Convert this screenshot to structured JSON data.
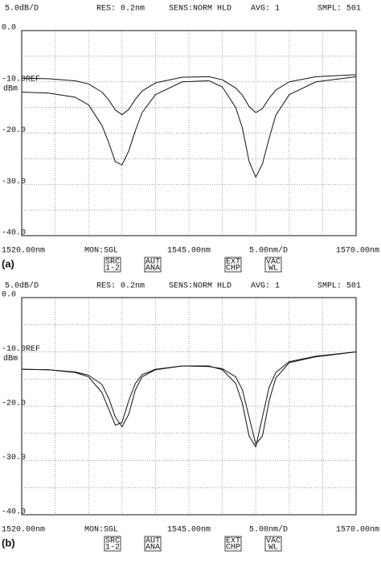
{
  "chart_data": [
    {
      "type": "line",
      "panel_label": "(a)",
      "header": [
        "5.0dB/D",
        "RES: 0.2nm",
        "SENS:NORM HLD",
        "AVG:   1",
        "SMPL: 501"
      ],
      "ref_label": "REF",
      "unit_label": "dBm",
      "mon_label": "MON:SGL",
      "scale_label": "5.00nm/D",
      "buttons": [
        [
          "SRC",
          "1-2"
        ],
        [
          "AUT",
          "ANA"
        ],
        [
          "EXT",
          "CHP"
        ],
        [
          "VAC",
          "WL"
        ]
      ],
      "x": [
        1520,
        1524,
        1528,
        1530,
        1532,
        1533,
        1534,
        1535,
        1536,
        1537,
        1538,
        1540,
        1544,
        1548,
        1550,
        1552,
        1553,
        1554,
        1555,
        1556,
        1557,
        1558,
        1560,
        1564,
        1570
      ],
      "series": [
        {
          "color": "#111111",
          "values": [
            -9.3,
            -9.4,
            -9.8,
            -10.4,
            -12.0,
            -13.5,
            -15.5,
            -16.4,
            -15.4,
            -13.4,
            -11.8,
            -10.2,
            -9.1,
            -9.0,
            -9.6,
            -11.2,
            -12.6,
            -14.8,
            -16.0,
            -15.2,
            -13.2,
            -11.6,
            -10.0,
            -9.0,
            -8.6
          ]
        },
        {
          "color": "#111111",
          "values": [
            -12.0,
            -12.2,
            -13.0,
            -14.5,
            -18.5,
            -21.8,
            -25.6,
            -26.2,
            -23.5,
            -19.5,
            -16.0,
            -12.5,
            -10.0,
            -9.8,
            -11.0,
            -15.0,
            -19.0,
            -25.5,
            -28.6,
            -26.0,
            -21.0,
            -16.5,
            -12.5,
            -10.0,
            -9.0
          ]
        }
      ],
      "xlim": [
        1520,
        1570
      ],
      "xticks": [
        {
          "value": 1520,
          "label": "1520.00nm"
        },
        {
          "value": 1545,
          "label": "1545.00nm"
        },
        {
          "value": 1570,
          "label": "1570.00nm"
        }
      ],
      "ylim": [
        -40,
        0
      ],
      "yticks": [
        {
          "value": 0,
          "label": "0.0"
        },
        {
          "value": -10,
          "label": "-10.0"
        },
        {
          "value": -20,
          "label": "-20.0"
        },
        {
          "value": -30,
          "label": "-30.0"
        },
        {
          "value": -40,
          "label": "-40.0"
        }
      ],
      "grid": true
    },
    {
      "type": "line",
      "panel_label": "(b)",
      "header": [
        "5.0dB/D",
        "RES: 0.2nm",
        "SENS:NORM HLD",
        "AVG:   1",
        "SMPL: 501"
      ],
      "ref_label": "REF",
      "unit_label": "dBm",
      "mon_label": "MON:SGL",
      "scale_label": "5.00nm/D",
      "buttons": [
        [
          "SRC",
          "1-2"
        ],
        [
          "AUT",
          "ANA"
        ],
        [
          "EXT",
          "CHP"
        ],
        [
          "VAC",
          "WL"
        ]
      ],
      "x": [
        1520,
        1524,
        1528,
        1530,
        1532,
        1533,
        1534,
        1535,
        1536,
        1537,
        1538,
        1540,
        1544,
        1548,
        1550,
        1552,
        1553,
        1554,
        1555,
        1556,
        1557,
        1558,
        1560,
        1564,
        1570
      ],
      "series": [
        {
          "color": "#111111",
          "values": [
            -13.2,
            -13.3,
            -13.8,
            -14.6,
            -17.5,
            -20.5,
            -23.5,
            -23.0,
            -19.0,
            -15.8,
            -14.2,
            -13.2,
            -12.6,
            -12.6,
            -13.3,
            -15.8,
            -19.5,
            -25.5,
            -27.5,
            -22.0,
            -16.5,
            -13.8,
            -11.8,
            -10.8,
            -10.0
          ]
        },
        {
          "color": "#111111",
          "values": [
            -13.2,
            -13.3,
            -13.7,
            -14.3,
            -16.0,
            -18.5,
            -22.0,
            -23.8,
            -21.5,
            -17.0,
            -14.6,
            -13.3,
            -12.6,
            -12.7,
            -13.1,
            -14.6,
            -17.0,
            -22.0,
            -27.0,
            -25.5,
            -19.0,
            -14.8,
            -12.0,
            -10.9,
            -10.0
          ]
        }
      ],
      "xlim": [
        1520,
        1570
      ],
      "xticks": [
        {
          "value": 1520,
          "label": "1520.00nm"
        },
        {
          "value": 1545,
          "label": "1545.00nm"
        },
        {
          "value": 1570,
          "label": "1570.00nm"
        }
      ],
      "ylim": [
        -40,
        0
      ],
      "yticks": [
        {
          "value": 0,
          "label": "0.0"
        },
        {
          "value": -10,
          "label": "-10.0"
        },
        {
          "value": -20,
          "label": "-20.0"
        },
        {
          "value": -30,
          "label": "-30.0"
        },
        {
          "value": -40,
          "label": "-40.0"
        }
      ],
      "grid": true
    }
  ]
}
